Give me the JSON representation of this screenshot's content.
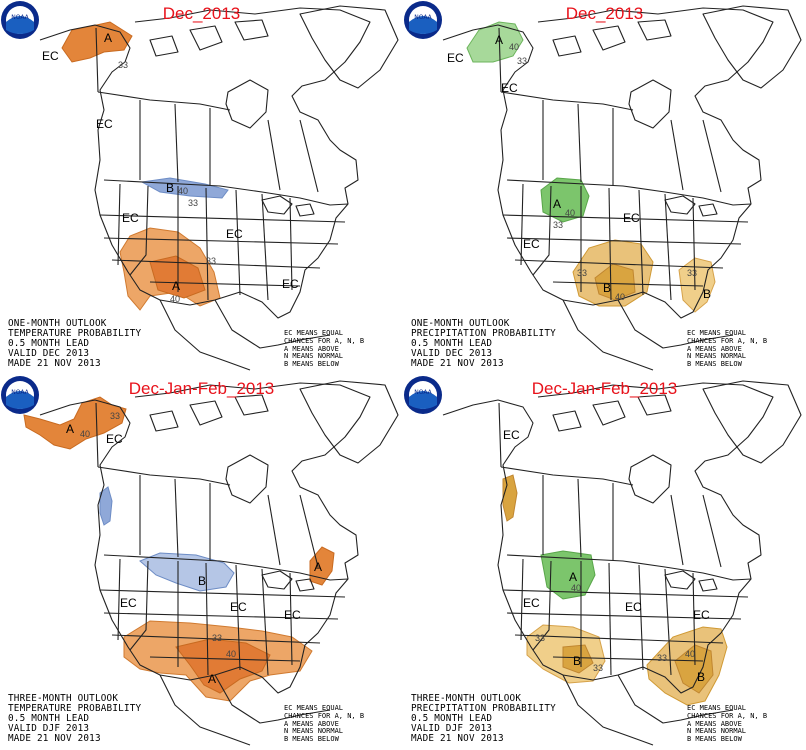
{
  "panels": [
    {
      "title": "Dec_2013",
      "outlook_type": "ONE-MONTH OUTLOOK",
      "variable": "TEMPERATURE PROBABILITY",
      "lead": "0.5 MONTH LEAD",
      "valid": "VALID DEC 2013",
      "made": "MADE 21 NOV 2013",
      "above_color": "#e3853a",
      "below_color": "#8fa8d8"
    },
    {
      "title": "Dec_2013",
      "outlook_type": "ONE-MONTH OUTLOOK",
      "variable": "PRECIPITATION PROBABILITY",
      "lead": "0.5 MONTH LEAD",
      "valid": "VALID DEC 2013",
      "made": "MADE 21 NOV 2013",
      "above_color": "#7cc56c",
      "below_color": "#d9a440"
    },
    {
      "title": "Dec-Jan-Feb_2013",
      "outlook_type": "THREE-MONTH OUTLOOK",
      "variable": "TEMPERATURE PROBABILITY",
      "lead": "0.5 MONTH LEAD",
      "valid": "VALID DJF 2013",
      "made": "MADE 21 NOV 2013",
      "above_color": "#e3853a",
      "below_color": "#8fa8d8"
    },
    {
      "title": "Dec-Jan-Feb_2013",
      "outlook_type": "THREE-MONTH OUTLOOK",
      "variable": "PRECIPITATION PROBABILITY",
      "lead": "0.5 MONTH LEAD",
      "valid": "VALID DJF 2013",
      "made": "MADE 21 NOV 2013",
      "above_color": "#7cc56c",
      "below_color": "#d9a440"
    }
  ],
  "key": {
    "line1": "EC MEANS EQUAL",
    "line2": "CHANCES FOR A, N, B",
    "line3": "A MEANS ABOVE",
    "line4": "N MEANS NORMAL",
    "line5": "B MEANS BELOW"
  },
  "logo_text": "NOAA",
  "labels": {
    "ec": "EC",
    "above": "A",
    "below": "B",
    "p33": "33",
    "p40": "40"
  }
}
